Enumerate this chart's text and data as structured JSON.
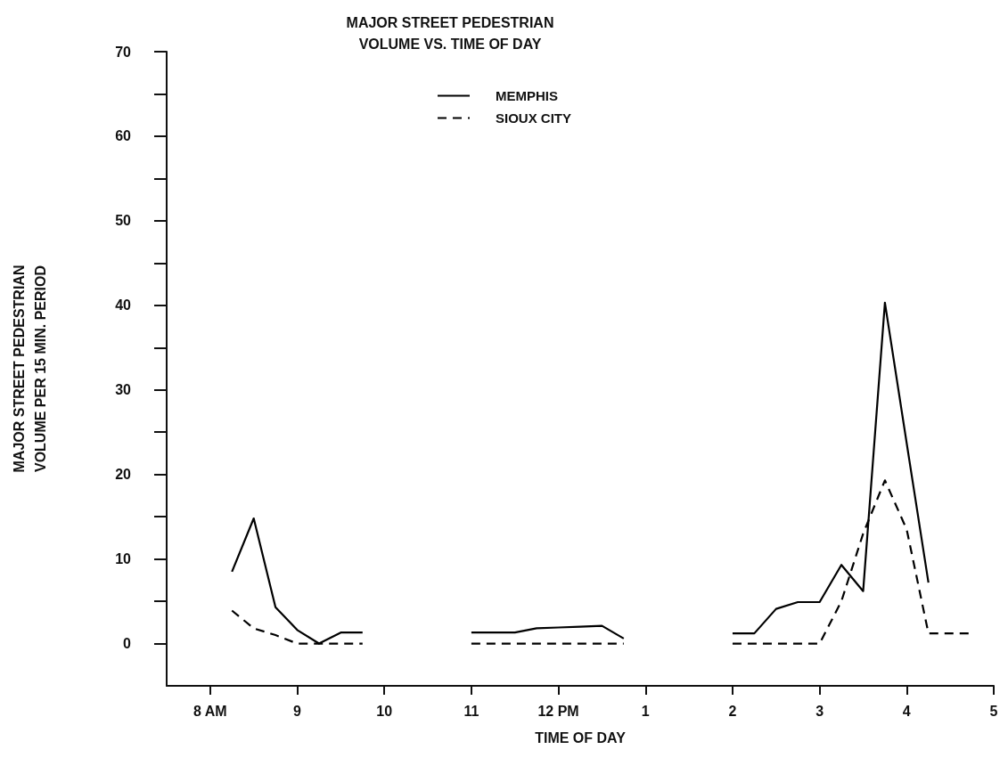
{
  "chart_data": {
    "type": "line",
    "title": "MAJOR STREET PEDESTRIAN\nVOLUME VS. TIME OF DAY",
    "xlabel": "TIME OF DAY",
    "ylabel": "MAJOR STREET PEDESTRIAN\nVOLUME PER 15 MIN. PERIOD",
    "categories": [
      null,
      null,
      "8 AM",
      null,
      null,
      null,
      "9",
      null,
      null,
      null,
      "10",
      null,
      null,
      null,
      "11",
      null,
      null,
      null,
      "12 PM",
      null,
      null,
      null,
      "1",
      null,
      null,
      null,
      "2",
      null,
      null,
      null,
      "3",
      null,
      null,
      null,
      "4",
      null,
      null,
      null,
      "5"
    ],
    "series": [
      {
        "name": "MEMPHIS",
        "color": "#000000",
        "line_style": "solid",
        "values": [
          null,
          null,
          null,
          8.5,
          14.8,
          4.3,
          1.6,
          0,
          1.3,
          1.3,
          null,
          null,
          null,
          null,
          1.3,
          1.3,
          1.3,
          1.8,
          1.9,
          2.0,
          2.1,
          0.6,
          null,
          null,
          null,
          null,
          1.2,
          1.2,
          4.1,
          4.9,
          4.9,
          9.3,
          6.2,
          40.3,
          23.7,
          7.2,
          null,
          null,
          null
        ]
      },
      {
        "name": "SIOUX CITY",
        "color": "#000000",
        "line_style": "dashed",
        "values": [
          null,
          null,
          null,
          3.9,
          1.8,
          1.0,
          0,
          0,
          0,
          0,
          null,
          null,
          null,
          null,
          0,
          0,
          0,
          0,
          0,
          0,
          0,
          0,
          null,
          null,
          null,
          null,
          0,
          0,
          0,
          0,
          0,
          5,
          13,
          19.3,
          13.5,
          1.2,
          1.2,
          1.2,
          null
        ]
      }
    ],
    "ylim": [
      -5,
      70
    ],
    "yticks": [
      0,
      {
        "value": 5,
        "label": null
      },
      10,
      {
        "value": 15,
        "label": null
      },
      20,
      {
        "value": 25,
        "label": null
      },
      30,
      {
        "value": 35,
        "label": null
      },
      40,
      {
        "value": 45,
        "label": null
      },
      50,
      {
        "value": 55,
        "label": null
      },
      60,
      {
        "value": 65,
        "label": null
      },
      70
    ],
    "grid": false,
    "legend": "top",
    "marker": "none"
  }
}
